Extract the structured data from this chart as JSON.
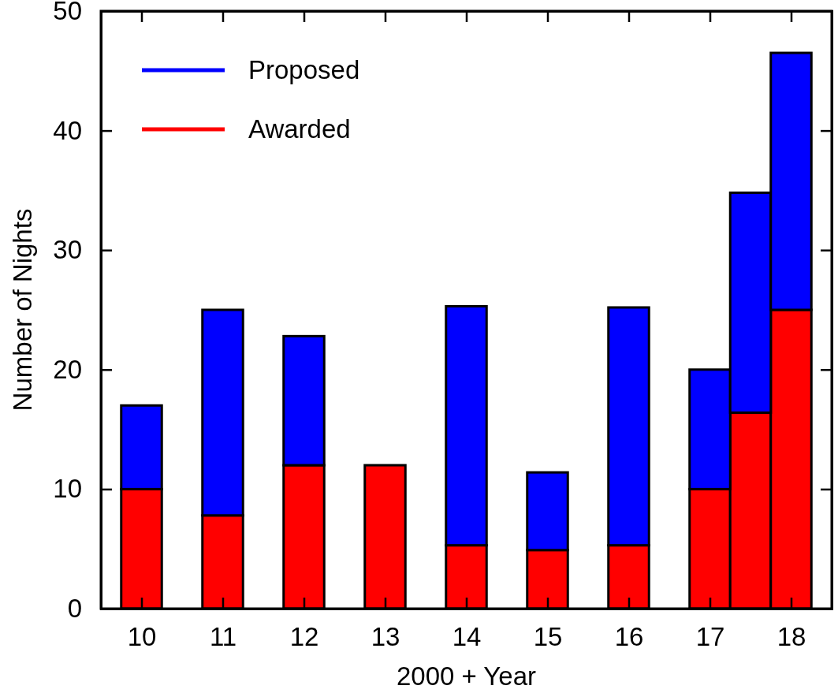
{
  "chart_data": {
    "type": "bar",
    "stacked": true,
    "xlabel": "2000 + Year",
    "ylabel": "Number of Nights",
    "x": [
      10,
      11,
      12,
      13,
      14,
      15,
      16,
      17,
      17.5,
      18
    ],
    "series": [
      {
        "name": "Awarded",
        "color": "#ff0000",
        "values": [
          10,
          7.8,
          12,
          12,
          5.3,
          4.9,
          5.3,
          10,
          16.4,
          25
        ]
      },
      {
        "name": "Proposed",
        "color": "#0000ff",
        "values": [
          7,
          17.2,
          10.8,
          0,
          20,
          6.5,
          19.9,
          10,
          18.4,
          21.5
        ]
      }
    ],
    "xlim": [
      9.5,
      18.5
    ],
    "xticks": [
      10,
      11,
      12,
      13,
      14,
      15,
      16,
      17,
      18
    ],
    "ylim": [
      0,
      50
    ],
    "yticks": [
      0,
      10,
      20,
      30,
      40,
      50
    ],
    "legend": "top left",
    "grid": false
  }
}
